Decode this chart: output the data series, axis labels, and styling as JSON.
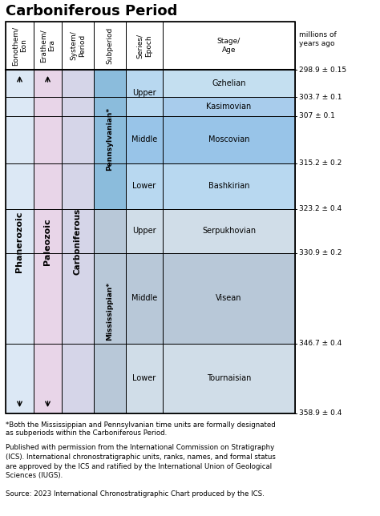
{
  "title": "Carboniferous Period",
  "title_fontsize": 13,
  "footnote1": "*Both the Mississippian and Pennsylvanian time units are formally designated",
  "footnote2": "as subperiods within the Carboniferous Period.",
  "permission": "Published with permission from the International Commission on Stratigraphy\n(ICS). International chronostratigraphic units, ranks, names, and formal status\nare approved by the ICS and ratified by the International Union of Geological\nSciences (IUGS).",
  "source": "Source: 2023 International Chronostratigraphic Chart produced by the ICS.",
  "color_phanerozoic": "#dce8f5",
  "color_paleozoic": "#e8d5e8",
  "color_carboniferous": "#d5d5e8",
  "color_penn_sub": "#8bbcdc",
  "color_miss_sub": "#b8c8d8",
  "color_upper_penn": "#b8d8f0",
  "color_mid_penn": "#98c4e8",
  "color_lower_penn": "#b8d8f0",
  "color_upper_miss": "#d0dde8",
  "color_mid_miss": "#b8c8d8",
  "color_lower_miss": "#d0dde8",
  "color_gzhelian": "#c4dff0",
  "color_kasimovian": "#a8ccec",
  "color_white": "#ffffff",
  "color_border": "#000000",
  "time_values": [
    298.9,
    303.7,
    307.0,
    315.2,
    323.2,
    330.9,
    346.7,
    358.9
  ],
  "time_labels": [
    "298.9 ± 0.15",
    "303.7 ± 0.1",
    "307 ± 0.1",
    "315.2 ± 0.2",
    "323.2 ± 0.4",
    "330.9 ± 0.2",
    "346.7 ± 0.4",
    "358.9 ± 0.4"
  ]
}
